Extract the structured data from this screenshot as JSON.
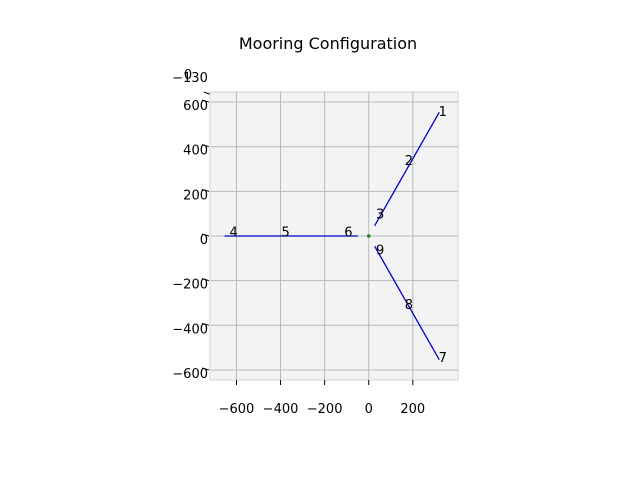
{
  "chart_data": {
    "type": "line",
    "title": "Mooring Configuration",
    "xlabel": "",
    "ylabel": "",
    "xlim": [
      -720,
      405
    ],
    "ylim": [
      -645,
      645
    ],
    "xticks": [
      -600,
      -400,
      -200,
      0,
      200
    ],
    "xtick_labels": [
      "−600",
      "−400",
      "−200",
      "0",
      "200"
    ],
    "yticks": [
      -600,
      -400,
      -200,
      0,
      200,
      400,
      600
    ],
    "ytick_labels": [
      "−600",
      "−400",
      "−200",
      "0",
      "200",
      "400",
      "600"
    ],
    "grid": true,
    "background": "#f3f3f3",
    "line_color": "#0000cc",
    "marker_color": "#2a7a2a",
    "z_axis_fragment": [
      "−130",
      "0"
    ],
    "series": [
      {
        "x": [
          320,
          27
        ],
        "y": [
          554,
          46
        ]
      },
      {
        "x": [
          -654,
          -50
        ],
        "y": [
          0,
          0
        ]
      },
      {
        "x": [
          320,
          27
        ],
        "y": [
          -554,
          -46
        ]
      }
    ],
    "center_marker": {
      "x": 0,
      "y": 0
    },
    "labels": [
      {
        "text": "1",
        "x": 336,
        "y": 561
      },
      {
        "text": "2",
        "x": 182,
        "y": 341
      },
      {
        "text": "3",
        "x": 52,
        "y": 100
      },
      {
        "text": "4",
        "x": -613,
        "y": 20
      },
      {
        "text": "5",
        "x": -377,
        "y": 20
      },
      {
        "text": "6",
        "x": -92,
        "y": 20
      },
      {
        "text": "7",
        "x": 336,
        "y": -541
      },
      {
        "text": "8",
        "x": 182,
        "y": -304
      },
      {
        "text": "9",
        "x": 52,
        "y": -60
      }
    ]
  }
}
